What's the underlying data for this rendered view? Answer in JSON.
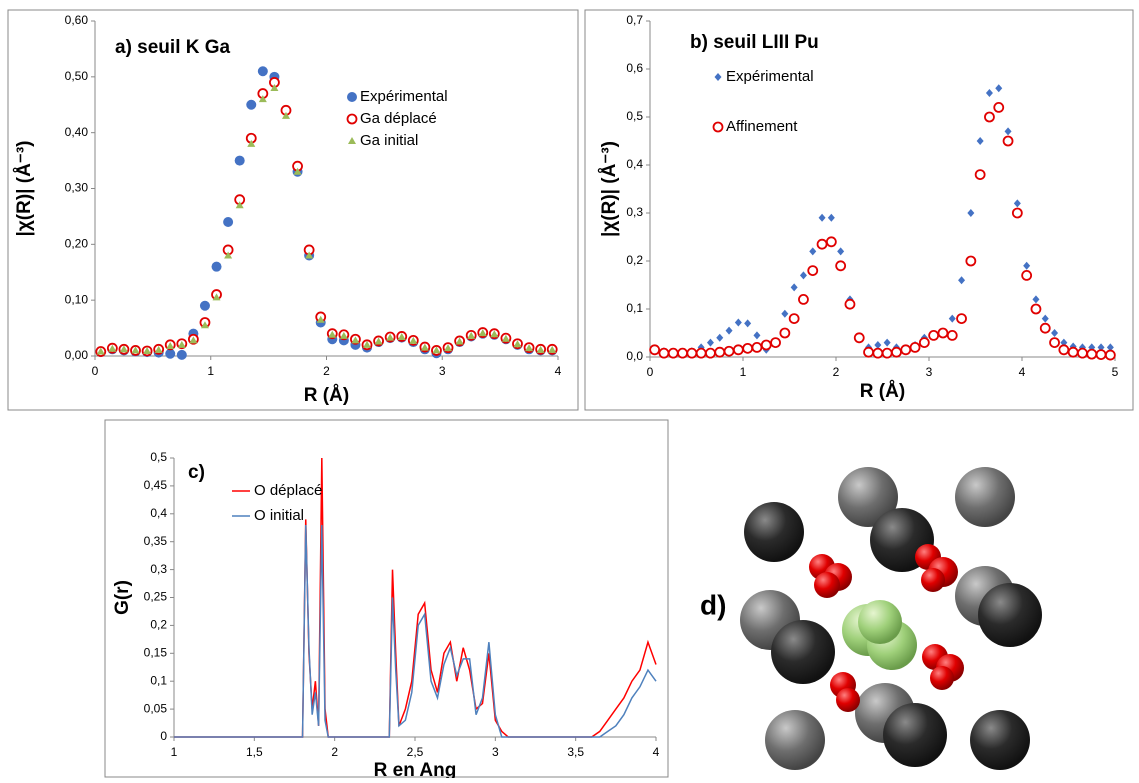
{
  "chart_data": [
    {
      "type": "scatter",
      "title": "a) seuil K Ga",
      "xlabel": "R (Å)",
      "ylabel": "|χ(R)| (Å⁻³)",
      "xlim": [
        0,
        4
      ],
      "xticks": [
        0,
        1,
        2,
        3,
        4
      ],
      "ylim": [
        0,
        0.6
      ],
      "yticks": [
        {
          "value": 0,
          "label": "0,00"
        },
        {
          "value": 0.1,
          "label": "0,10"
        },
        {
          "value": 0.2,
          "label": "0,20"
        },
        {
          "value": 0.3,
          "label": "0,30"
        },
        {
          "value": 0.4,
          "label": "0,40"
        },
        {
          "value": 0.5,
          "label": "0,50"
        },
        {
          "value": 0.6,
          "label": "0,60"
        }
      ],
      "x": [
        0.05,
        0.15,
        0.25,
        0.35,
        0.45,
        0.55,
        0.65,
        0.75,
        0.85,
        0.95,
        1.05,
        1.15,
        1.25,
        1.35,
        1.45,
        1.55,
        1.65,
        1.75,
        1.85,
        1.95,
        2.05,
        2.15,
        2.25,
        2.35,
        2.45,
        2.55,
        2.65,
        2.75,
        2.85,
        2.95,
        3.05,
        3.15,
        3.25,
        3.35,
        3.45,
        3.55,
        3.65,
        3.75,
        3.85,
        3.95
      ],
      "series": [
        {
          "name": "Expérimental",
          "color": "#4472c4",
          "marker": "circle",
          "values": [
            0.007,
            0.012,
            0.01,
            0.008,
            0.007,
            0.006,
            0.004,
            0.002,
            0.04,
            0.09,
            0.16,
            0.24,
            0.35,
            0.45,
            0.51,
            0.5,
            0.44,
            0.33,
            0.18,
            0.06,
            0.03,
            0.028,
            0.02,
            0.015,
            0.025,
            0.032,
            0.033,
            0.025,
            0.012,
            0.005,
            0.012,
            0.025,
            0.035,
            0.04,
            0.038,
            0.03,
            0.02,
            0.012,
            0.01,
            0.01
          ]
        },
        {
          "name": "Ga déplacé",
          "color": "#e00000",
          "marker": "open-circle",
          "values": [
            0.008,
            0.014,
            0.012,
            0.01,
            0.009,
            0.012,
            0.02,
            0.022,
            0.03,
            0.06,
            0.11,
            0.19,
            0.28,
            0.39,
            0.47,
            0.49,
            0.44,
            0.34,
            0.19,
            0.07,
            0.04,
            0.038,
            0.03,
            0.02,
            0.027,
            0.034,
            0.035,
            0.028,
            0.016,
            0.01,
            0.015,
            0.027,
            0.037,
            0.042,
            0.04,
            0.032,
            0.022,
            0.015,
            0.012,
            0.012
          ]
        },
        {
          "name": "Ga initial",
          "color": "#9bbb59",
          "marker": "triangle",
          "values": [
            0.008,
            0.013,
            0.012,
            0.01,
            0.009,
            0.011,
            0.018,
            0.02,
            0.028,
            0.055,
            0.105,
            0.18,
            0.27,
            0.38,
            0.46,
            0.48,
            0.43,
            0.33,
            0.18,
            0.065,
            0.038,
            0.036,
            0.028,
            0.02,
            0.026,
            0.033,
            0.034,
            0.027,
            0.015,
            0.01,
            0.014,
            0.026,
            0.036,
            0.041,
            0.039,
            0.031,
            0.021,
            0.014,
            0.011,
            0.011
          ]
        }
      ]
    },
    {
      "type": "scatter",
      "title": "b) seuil LIII Pu",
      "xlabel": "R (Å)",
      "ylabel": "|χ(R)| (Å⁻³)",
      "xlim": [
        0,
        5
      ],
      "xticks": [
        0,
        1,
        2,
        3,
        4,
        5
      ],
      "ylim": [
        0,
        0.7
      ],
      "yticks": [
        {
          "value": 0,
          "label": "0,0"
        },
        {
          "value": 0.1,
          "label": "0,1"
        },
        {
          "value": 0.2,
          "label": "0,2"
        },
        {
          "value": 0.3,
          "label": "0,3"
        },
        {
          "value": 0.4,
          "label": "0,4"
        },
        {
          "value": 0.5,
          "label": "0,5"
        },
        {
          "value": 0.6,
          "label": "0,6"
        },
        {
          "value": 0.7,
          "label": "0,7"
        }
      ],
      "x": [
        0.05,
        0.15,
        0.25,
        0.35,
        0.45,
        0.55,
        0.65,
        0.75,
        0.85,
        0.95,
        1.05,
        1.15,
        1.25,
        1.35,
        1.45,
        1.55,
        1.65,
        1.75,
        1.85,
        1.95,
        2.05,
        2.15,
        2.25,
        2.35,
        2.45,
        2.55,
        2.65,
        2.75,
        2.85,
        2.95,
        3.05,
        3.15,
        3.25,
        3.35,
        3.45,
        3.55,
        3.65,
        3.75,
        3.85,
        3.95,
        4.05,
        4.15,
        4.25,
        4.35,
        4.45,
        4.55,
        4.65,
        4.75,
        4.85,
        4.95
      ],
      "series": [
        {
          "name": "Expérimental",
          "color": "#4472c4",
          "marker": "diamond",
          "values": [
            0.015,
            0.012,
            0.01,
            0.01,
            0.012,
            0.02,
            0.03,
            0.04,
            0.055,
            0.072,
            0.07,
            0.045,
            0.015,
            0.03,
            0.09,
            0.145,
            0.17,
            0.22,
            0.29,
            0.29,
            0.22,
            0.12,
            0.04,
            0.02,
            0.025,
            0.03,
            0.02,
            0.015,
            0.025,
            0.04,
            0.045,
            0.05,
            0.08,
            0.16,
            0.3,
            0.45,
            0.55,
            0.56,
            0.47,
            0.32,
            0.19,
            0.12,
            0.08,
            0.05,
            0.03,
            0.022,
            0.02,
            0.02,
            0.02,
            0.02
          ]
        },
        {
          "name": "Affinement",
          "color": "#e00000",
          "marker": "open-circle",
          "values": [
            0.015,
            0.008,
            0.008,
            0.008,
            0.008,
            0.008,
            0.008,
            0.01,
            0.012,
            0.015,
            0.018,
            0.02,
            0.025,
            0.03,
            0.05,
            0.08,
            0.12,
            0.18,
            0.235,
            0.24,
            0.19,
            0.11,
            0.04,
            0.01,
            0.008,
            0.008,
            0.01,
            0.015,
            0.02,
            0.03,
            0.045,
            0.05,
            0.045,
            0.08,
            0.2,
            0.38,
            0.5,
            0.52,
            0.45,
            0.3,
            0.17,
            0.1,
            0.06,
            0.03,
            0.015,
            0.01,
            0.008,
            0.006,
            0.005,
            0.004
          ]
        }
      ]
    },
    {
      "type": "line",
      "title": "c)",
      "xlabel": "R en Ang",
      "ylabel": "G(r)",
      "xlim": [
        1,
        4
      ],
      "xticks": [
        1,
        {
          "value": 1.5,
          "label": "1,5"
        },
        2,
        {
          "value": 2.5,
          "label": "2,5"
        },
        3,
        {
          "value": 3.5,
          "label": "3,5"
        },
        4
      ],
      "ylim": [
        0,
        0.5
      ],
      "yticks": [
        0,
        {
          "value": 0.05,
          "label": "0,05"
        },
        {
          "value": 0.1,
          "label": "0,1"
        },
        {
          "value": 0.15,
          "label": "0,15"
        },
        {
          "value": 0.2,
          "label": "0,2"
        },
        {
          "value": 0.25,
          "label": "0,25"
        },
        {
          "value": 0.3,
          "label": "0,3"
        },
        {
          "value": 0.35,
          "label": "0,35"
        },
        {
          "value": 0.4,
          "label": "0,4"
        },
        {
          "value": 0.45,
          "label": "0,45"
        },
        {
          "value": 0.5,
          "label": "0,5"
        }
      ],
      "x": [
        1,
        1.8,
        1.82,
        1.84,
        1.86,
        1.88,
        1.9,
        1.92,
        1.94,
        1.96,
        2.34,
        2.36,
        2.38,
        2.4,
        2.44,
        2.48,
        2.52,
        2.56,
        2.6,
        2.64,
        2.68,
        2.72,
        2.76,
        2.8,
        2.84,
        2.88,
        2.92,
        2.96,
        3.0,
        3.04,
        3.08,
        3.6,
        3.65,
        3.7,
        3.75,
        3.8,
        3.85,
        3.9,
        3.95,
        4.0
      ],
      "series": [
        {
          "name": "O déplacé",
          "color": "#ff0000",
          "values": [
            0,
            0,
            0.39,
            0.15,
            0.05,
            0.1,
            0.02,
            0.5,
            0.05,
            0,
            0,
            0.3,
            0.15,
            0.02,
            0.05,
            0.1,
            0.22,
            0.24,
            0.12,
            0.08,
            0.15,
            0.17,
            0.1,
            0.16,
            0.12,
            0.05,
            0.06,
            0.15,
            0.03,
            0.01,
            0,
            0,
            0.01,
            0.03,
            0.05,
            0.07,
            0.1,
            0.12,
            0.17,
            0.13
          ]
        },
        {
          "name": "O initial",
          "color": "#4f81bd",
          "values": [
            0,
            0,
            0.38,
            0.16,
            0.04,
            0.08,
            0.02,
            0.38,
            0.03,
            0,
            0,
            0.25,
            0.12,
            0.02,
            0.03,
            0.08,
            0.2,
            0.22,
            0.1,
            0.07,
            0.13,
            0.16,
            0.11,
            0.14,
            0.14,
            0.04,
            0.07,
            0.17,
            0.04,
            0,
            0,
            0,
            0,
            0.01,
            0.02,
            0.04,
            0.07,
            0.09,
            0.12,
            0.1
          ]
        }
      ]
    }
  ],
  "panel_d": {
    "label": "d)"
  }
}
